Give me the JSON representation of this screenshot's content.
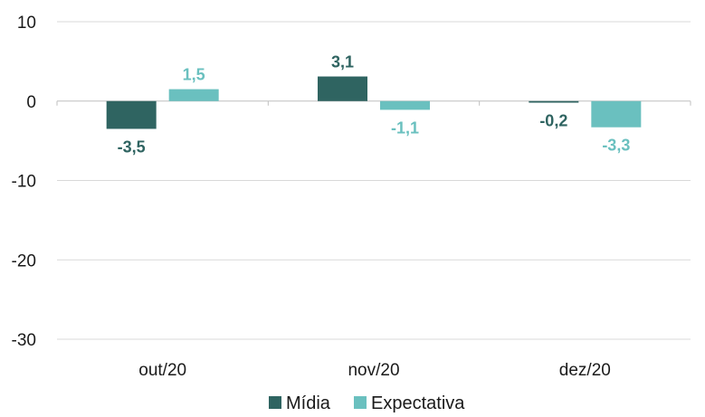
{
  "chart_data": {
    "type": "bar",
    "categories": [
      "out/20",
      "nov/20",
      "dez/20"
    ],
    "series": [
      {
        "name": "Mídia",
        "values": [
          -3.5,
          3.1,
          -0.2
        ],
        "labels": [
          "-3,5",
          "3,1",
          "-0,2"
        ],
        "color": "#2f6461"
      },
      {
        "name": "Expectativa",
        "values": [
          1.5,
          -1.1,
          -3.3
        ],
        "labels": [
          "1,5",
          "-1,1",
          "-3,3"
        ],
        "color": "#6ac0bf"
      }
    ],
    "ylim": [
      -30,
      10
    ],
    "yticks": [
      10,
      0,
      -10,
      -20,
      -30
    ],
    "grid": true,
    "legend": "bottom"
  }
}
